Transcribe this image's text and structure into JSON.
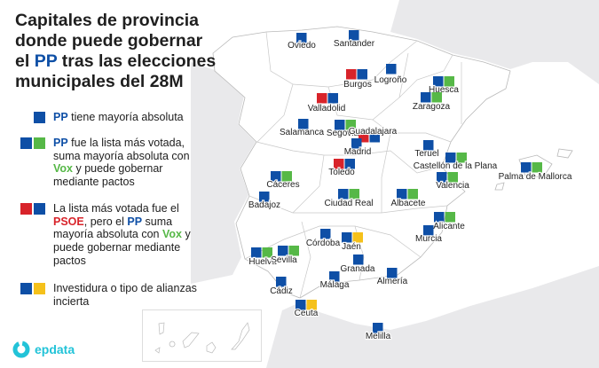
{
  "title": {
    "line1": "Capitales de provincia",
    "line2": "donde puede gobernar",
    "line3_pre": "el ",
    "line3_pp": "PP",
    "line3_post": " tras las elecciones",
    "line4": "municipales del 28M"
  },
  "colors": {
    "pp": "#0e4fa6",
    "vox": "#56b847",
    "psoe": "#d8232a",
    "uncertain": "#f5c11b",
    "neighbor_land": "#e9e9eb",
    "border": "#b9b9b9",
    "brand": "#22c3d8"
  },
  "legend": [
    {
      "category": "pp",
      "swatches": [
        "pp"
      ],
      "parts": [
        {
          "t": "PP",
          "c": "pp"
        },
        {
          "t": " tiene mayoría absoluta"
        }
      ]
    },
    {
      "category": "pp_vox",
      "swatches": [
        "pp",
        "vox"
      ],
      "parts": [
        {
          "t": "PP",
          "c": "pp"
        },
        {
          "t": " fue la lista más votada, suma mayoría absoluta con "
        },
        {
          "t": "Vox",
          "c": "vox"
        },
        {
          "t": " y puede gobernar mediante pactos"
        }
      ]
    },
    {
      "category": "psoe_pp_vox",
      "swatches": [
        "psoe",
        "pp"
      ],
      "parts": [
        {
          "t": "La lista más votada fue el "
        },
        {
          "t": "PSOE",
          "c": "psoe"
        },
        {
          "t": ", pero el "
        },
        {
          "t": "PP",
          "c": "pp"
        },
        {
          "t": " suma mayoría absoluta con "
        },
        {
          "t": "Vox",
          "c": "vox"
        },
        {
          "t": " y puede gobernar mediante pactos"
        }
      ]
    },
    {
      "category": "uncertain",
      "swatches": [
        "pp",
        "uncertain"
      ],
      "parts": [
        {
          "t": "Investidura o tipo de alianzas incierta"
        }
      ]
    }
  ],
  "cities": [
    {
      "name": "Oviedo",
      "swatches": [
        "pp"
      ]
    },
    {
      "name": "Santander",
      "swatches": [
        "pp"
      ]
    },
    {
      "name": "Burgos",
      "swatches": [
        "psoe",
        "pp"
      ]
    },
    {
      "name": "Logroño",
      "swatches": [
        "pp"
      ]
    },
    {
      "name": "Huesca",
      "swatches": [
        "pp",
        "vox"
      ]
    },
    {
      "name": "Zaragoza",
      "swatches": [
        "pp",
        "vox"
      ]
    },
    {
      "name": "Valladolid",
      "swatches": [
        "psoe",
        "pp"
      ]
    },
    {
      "name": "Salamanca",
      "swatches": [
        "pp"
      ]
    },
    {
      "name": "Segovia",
      "swatches": [
        "pp",
        "vox"
      ]
    },
    {
      "name": "Guadalajara",
      "swatches": [
        "psoe",
        "pp"
      ]
    },
    {
      "name": "Madrid",
      "swatches": [
        "pp"
      ]
    },
    {
      "name": "Teruel",
      "swatches": [
        "pp"
      ]
    },
    {
      "name": "Castellón de la Plana",
      "swatches": [
        "pp",
        "vox"
      ]
    },
    {
      "name": "Palma de Mallorca",
      "swatches": [
        "pp",
        "vox"
      ]
    },
    {
      "name": "Toledo",
      "swatches": [
        "psoe",
        "pp"
      ]
    },
    {
      "name": "Cáceres",
      "swatches": [
        "pp",
        "vox"
      ]
    },
    {
      "name": "Valencia",
      "swatches": [
        "pp",
        "vox"
      ]
    },
    {
      "name": "Badajoz",
      "swatches": [
        "pp"
      ]
    },
    {
      "name": "Ciudad Real",
      "swatches": [
        "pp",
        "vox"
      ]
    },
    {
      "name": "Albacete",
      "swatches": [
        "pp",
        "vox"
      ]
    },
    {
      "name": "Alicante",
      "swatches": [
        "pp",
        "vox"
      ]
    },
    {
      "name": "Murcia",
      "swatches": [
        "pp"
      ]
    },
    {
      "name": "Córdoba",
      "swatches": [
        "pp"
      ]
    },
    {
      "name": "Jaén",
      "swatches": [
        "pp",
        "uncertain"
      ]
    },
    {
      "name": "Huelva",
      "swatches": [
        "pp",
        "vox"
      ]
    },
    {
      "name": "Sevilla",
      "swatches": [
        "pp",
        "vox"
      ]
    },
    {
      "name": "Granada",
      "swatches": [
        "pp"
      ]
    },
    {
      "name": "Almería",
      "swatches": [
        "pp"
      ]
    },
    {
      "name": "Málaga",
      "swatches": [
        "pp"
      ]
    },
    {
      "name": "Cádiz",
      "swatches": [
        "pp"
      ]
    },
    {
      "name": "Ceuta",
      "swatches": [
        "pp",
        "uncertain"
      ]
    },
    {
      "name": "Melilla",
      "swatches": [
        "pp"
      ]
    }
  ],
  "logo": {
    "text": "epdata"
  }
}
